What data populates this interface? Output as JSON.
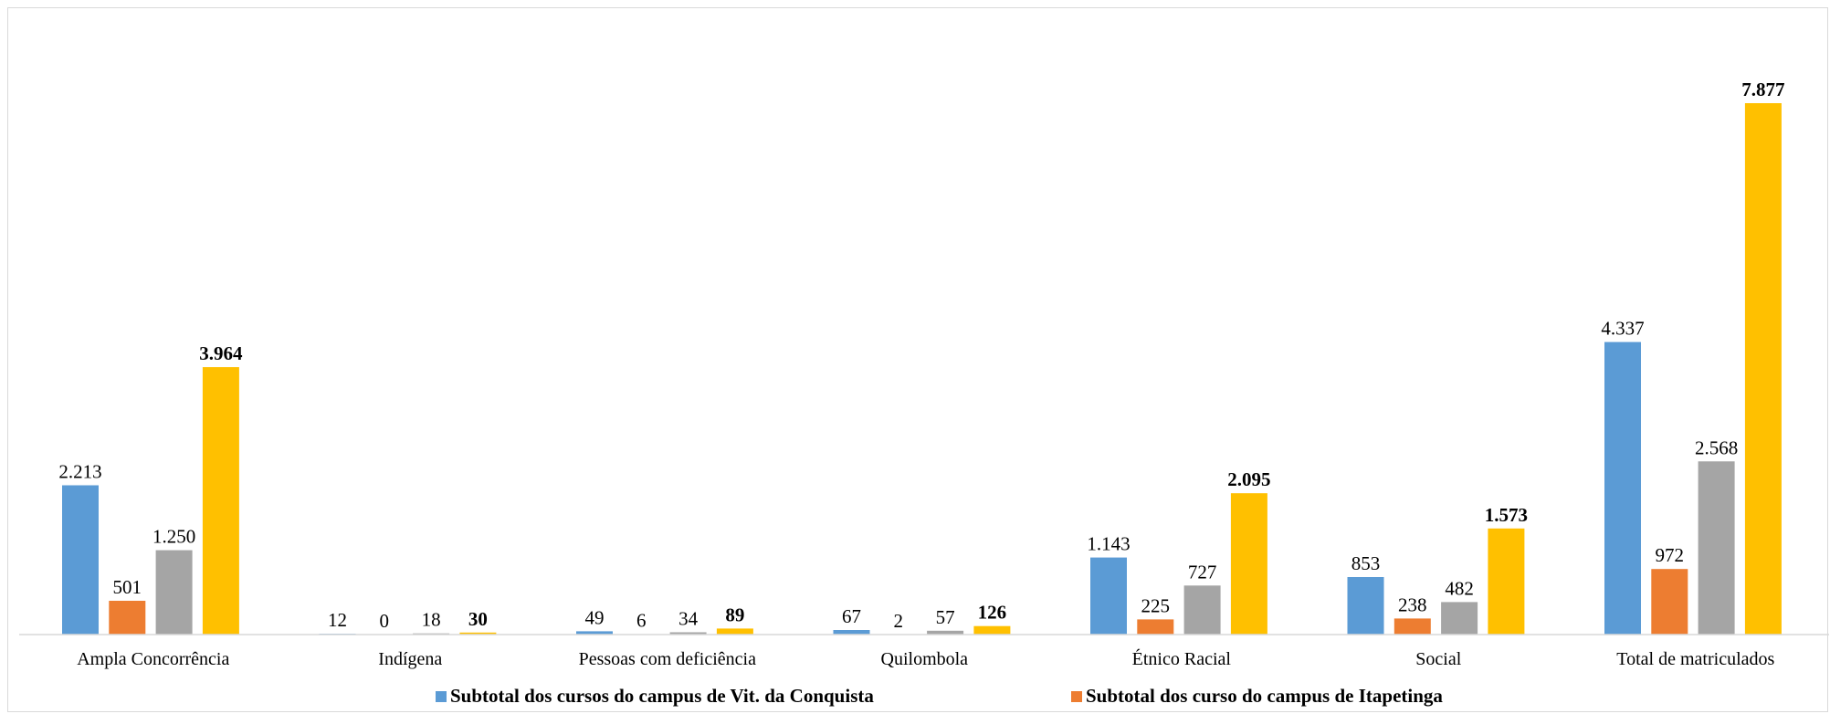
{
  "chart_data": {
    "type": "bar",
    "title": "",
    "xlabel": "",
    "ylabel": "",
    "categories": [
      "Ampla Concorrência",
      "Indígena",
      "Pessoas com deficiência",
      "Quilombola",
      "Étnico Racial",
      "Social",
      "Total de matriculados"
    ],
    "series": [
      {
        "name": "Subtotal dos cursos do campus de Vit. da Conquista",
        "color": "#5b9bd5",
        "values": [
          2213,
          12,
          49,
          67,
          1143,
          853,
          4337
        ],
        "labels": [
          "2.213",
          "12",
          "49",
          "67",
          "1.143",
          "853",
          "4.337"
        ]
      },
      {
        "name": "Subtotal dos curso do campus de Itapetinga",
        "color": "#ed7d31",
        "values": [
          501,
          0,
          6,
          2,
          225,
          238,
          972
        ],
        "labels": [
          "501",
          "0",
          "6",
          "2",
          "225",
          "238",
          "972"
        ]
      },
      {
        "color": "#a5a5a5",
        "values": [
          1250,
          18,
          34,
          57,
          727,
          482,
          2568
        ],
        "labels": [
          "1.250",
          "18",
          "34",
          "57",
          "727",
          "482",
          "2.568"
        ]
      },
      {
        "color": "#ffc000",
        "values": [
          3964,
          30,
          89,
          126,
          2095,
          1573,
          7877
        ],
        "labels": [
          "3.964",
          "30",
          "89",
          "126",
          "2.095",
          "1.573",
          "7.877"
        ],
        "bold_labels": true
      }
    ],
    "ylim": [
      0,
      9285
    ],
    "grid": false,
    "legend_position": "bottom"
  }
}
